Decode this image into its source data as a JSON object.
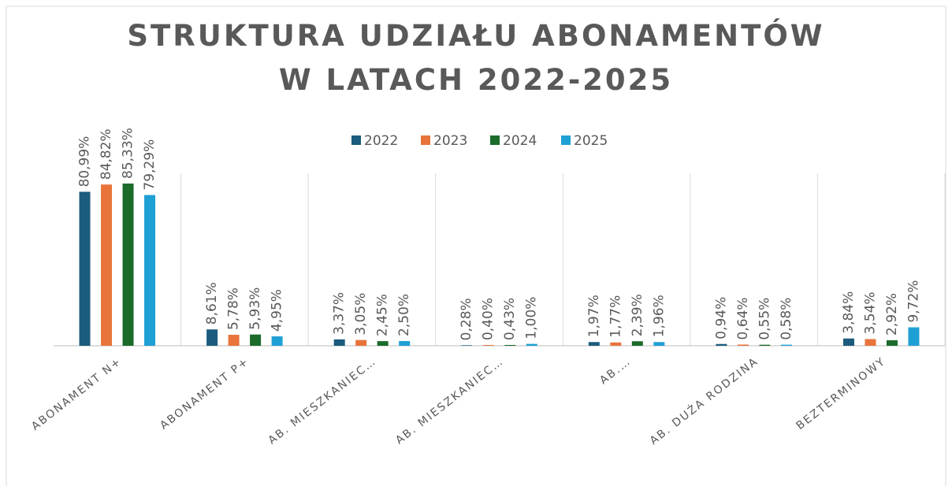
{
  "chart_data": {
    "type": "bar",
    "title": "STRUKTURA UDZIAŁU ABONAMENTÓW W LATACH 2022-2025",
    "categories": [
      "ABONAMENT N+",
      "ABONAMENT P+",
      "AB. MIESZKANIEC…",
      "AB. MIESZKANIEC…",
      "AB.…",
      "AB. DUŻA RODZINA",
      "BEZTERMINOWY"
    ],
    "series": [
      {
        "name": "2022",
        "color": "#1b5b7d",
        "values": [
          80.99,
          8.61,
          3.37,
          0.28,
          1.97,
          0.94,
          3.84
        ],
        "value_labels": [
          "80,99%",
          "8,61%",
          "3,37%",
          "0,28%",
          "1,97%",
          "0,94%",
          "3,84%"
        ]
      },
      {
        "name": "2023",
        "color": "#e8743b",
        "values": [
          84.82,
          5.78,
          3.05,
          0.4,
          1.77,
          0.64,
          3.54
        ],
        "value_labels": [
          "84,82%",
          "5,78%",
          "3,05%",
          "0,40%",
          "1,77%",
          "0,64%",
          "3,54%"
        ]
      },
      {
        "name": "2024",
        "color": "#1b6b2b",
        "values": [
          85.33,
          5.93,
          2.45,
          0.43,
          2.39,
          0.55,
          2.92
        ],
        "value_labels": [
          "85,33%",
          "5,93%",
          "2,45%",
          "0,43%",
          "2,39%",
          "0,55%",
          "2,92%"
        ]
      },
      {
        "name": "2025",
        "color": "#1fa0d5",
        "values": [
          79.29,
          4.95,
          2.5,
          1.0,
          1.96,
          0.58,
          9.72
        ],
        "value_labels": [
          "79,29%",
          "4,95%",
          "2,50%",
          "1,00%",
          "1,96%",
          "0,58%",
          "9,72%"
        ]
      }
    ],
    "legend": "top"
  }
}
